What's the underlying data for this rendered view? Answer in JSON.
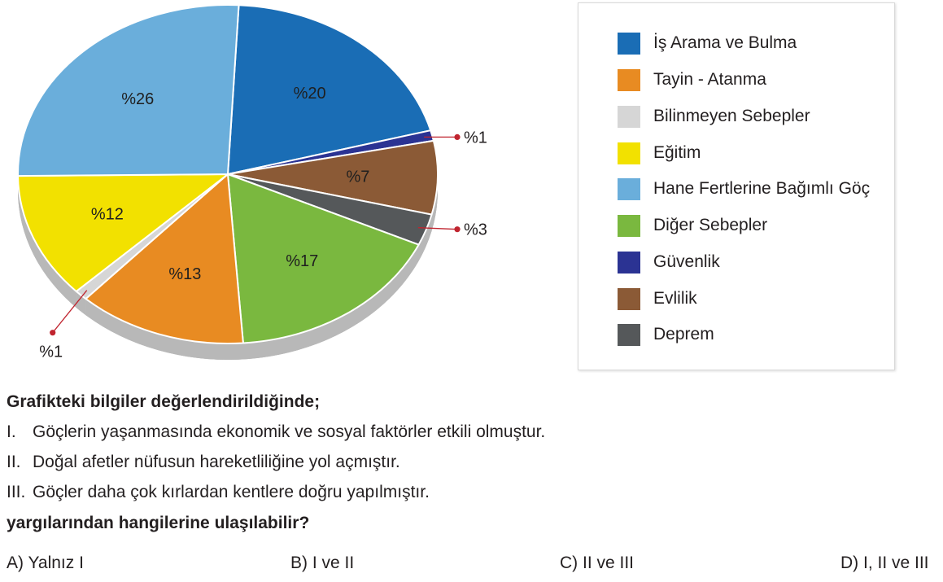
{
  "chart_data": {
    "type": "pie",
    "slices": [
      {
        "legend": "İş Arama ve Bulma",
        "label": "%20",
        "value": 20,
        "color": "#1a6db5"
      },
      {
        "legend": "Güvenlik",
        "label": "%1",
        "value": 1,
        "color": "#2b3393"
      },
      {
        "legend": "Evlilik",
        "label": "%7",
        "value": 7,
        "color": "#8b5a36"
      },
      {
        "legend": "Deprem",
        "label": "%3",
        "value": 3,
        "color": "#55585a"
      },
      {
        "legend": "Diğer Sebepler",
        "label": "%17",
        "value": 17,
        "color": "#7ab83f"
      },
      {
        "legend": "Tayin - Atanma",
        "label": "%13",
        "value": 13,
        "color": "#e88b22"
      },
      {
        "legend": "Bilinmeyen Sebepler",
        "label": "%1",
        "value": 1,
        "color": "#d6d6d6"
      },
      {
        "legend": "Eğitim",
        "label": "%12",
        "value": 12,
        "color": "#f2e100"
      },
      {
        "legend": "Hane Fertlerine Bağımlı Göç",
        "label": "%26",
        "value": 26,
        "color": "#6aaedb"
      }
    ]
  },
  "legend": {
    "items": [
      {
        "label": "İş Arama ve Bulma",
        "color": "#1a6db5"
      },
      {
        "label": "Tayin - Atanma",
        "color": "#e88b22"
      },
      {
        "label": "Bilinmeyen Sebepler",
        "color": "#d6d6d6"
      },
      {
        "label": "Eğitim",
        "color": "#f2e100"
      },
      {
        "label": "Hane Fertlerine Bağımlı Göç",
        "color": "#6aaedb"
      },
      {
        "label": "Diğer Sebepler",
        "color": "#7ab83f"
      },
      {
        "label": "Güvenlik",
        "color": "#2b3393"
      },
      {
        "label": "Evlilik",
        "color": "#8b5a36"
      },
      {
        "label": "Deprem",
        "color": "#55585a"
      }
    ]
  },
  "question": {
    "intro": "Grafikteki bilgiler değerlendirildiğinde;",
    "statements": [
      {
        "num": "I.",
        "text": "Göçlerin yaşanmasında ekonomik ve sosyal faktörler etkili olmuştur."
      },
      {
        "num": "II.",
        "text": "Doğal afetler nüfusun hareketliliğine yol açmıştır."
      },
      {
        "num": "III.",
        "text": "Göçler daha çok kırlardan kentlere doğru yapılmıştır."
      }
    ],
    "prompt": "yargılarından hangilerine ulaşılabilir?",
    "options": [
      "A) Yalnız I",
      "B) I ve II",
      "C) II ve III",
      "D) I, II ve III"
    ]
  }
}
